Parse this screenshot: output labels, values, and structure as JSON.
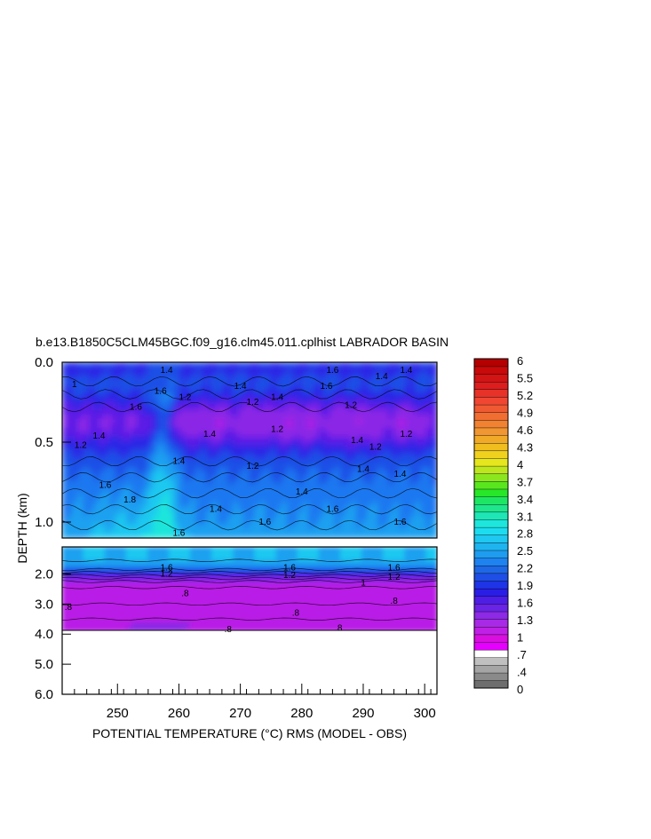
{
  "chart_data": {
    "type": "heatmap",
    "title": "b.e13.B1850C5CLM45BGC.f09_g16.clm45.011.cplhist LABRADOR BASIN",
    "xlabel": "POTENTIAL TEMPERATURE (°C) RMS (MODEL - OBS)",
    "ylabel": "DEPTH (km)",
    "xlim": [
      241,
      302
    ],
    "x_ticks": [
      "250",
      "260",
      "270",
      "280",
      "290",
      "300"
    ],
    "upper_panel": {
      "ylim": [
        0.0,
        1.1
      ],
      "y_ticks": [
        "0.0",
        "0.5",
        "1.0"
      ]
    },
    "lower_panel": {
      "ylim": [
        1.1,
        6.0
      ],
      "y_ticks": [
        "2.0",
        "3.0",
        "4.0",
        "5.0",
        "6.0"
      ]
    },
    "colorbar": {
      "labels": [
        "6",
        "5.5",
        "5.2",
        "4.9",
        "4.6",
        "4.3",
        "4",
        "3.7",
        "3.4",
        "3.1",
        "2.8",
        "2.5",
        "2.2",
        "1.9",
        "1.6",
        "1.3",
        "1",
        ".7",
        ".4",
        "0"
      ],
      "colors": [
        "#6e6e6e",
        "#8a8a8a",
        "#a5a5a5",
        "#c0c0c0",
        "#ffffff",
        "#e600ff",
        "#d90fe0",
        "#c020e6",
        "#a82ae6",
        "#8c2ae6",
        "#6a24e6",
        "#4e1ee6",
        "#2a1ee6",
        "#1e34e6",
        "#1e4ee6",
        "#1e68e6",
        "#1e82f0",
        "#1e9cf0",
        "#1eb4f0",
        "#1ec8f0",
        "#1edcf0",
        "#1ee6dc",
        "#1ee6b4",
        "#1ee68c",
        "#1ee664",
        "#28e628",
        "#5ae61e",
        "#8ce61e",
        "#bee61e",
        "#e6e61e",
        "#f0d21e",
        "#f0be1e",
        "#f0aa28",
        "#f09632",
        "#f08232",
        "#f06e32",
        "#f05a32",
        "#f04632",
        "#e63228",
        "#dc1e1e",
        "#d21414",
        "#c80a0a",
        "#b40000"
      ]
    },
    "grid": false,
    "contour_labels": [
      {
        "x": 243,
        "d": 0.14,
        "t": "1"
      },
      {
        "x": 253,
        "d": 0.28,
        "t": "1.6"
      },
      {
        "x": 257,
        "d": 0.18,
        "t": "1.6"
      },
      {
        "x": 258,
        "d": 0.05,
        "t": "1.4"
      },
      {
        "x": 261,
        "d": 0.22,
        "t": "1.2"
      },
      {
        "x": 265,
        "d": 0.45,
        "t": "1.4"
      },
      {
        "x": 270,
        "d": 0.15,
        "t": "1.4"
      },
      {
        "x": 272,
        "d": 0.25,
        "t": "1.2"
      },
      {
        "x": 276,
        "d": 0.42,
        "t": "1.2"
      },
      {
        "x": 276,
        "d": 0.22,
        "t": "1.4"
      },
      {
        "x": 285,
        "d": 0.05,
        "t": "1.6"
      },
      {
        "x": 284,
        "d": 0.15,
        "t": "1.6"
      },
      {
        "x": 288,
        "d": 0.27,
        "t": "1.2"
      },
      {
        "x": 289,
        "d": 0.49,
        "t": "1.4"
      },
      {
        "x": 293,
        "d": 0.09,
        "t": "1.4"
      },
      {
        "x": 297,
        "d": 0.05,
        "t": "1.4"
      },
      {
        "x": 297,
        "d": 0.45,
        "t": "1.2"
      },
      {
        "x": 244,
        "d": 0.52,
        "t": "1.2"
      },
      {
        "x": 247,
        "d": 0.46,
        "t": "1.4"
      },
      {
        "x": 248,
        "d": 0.77,
        "t": "1.6"
      },
      {
        "x": 252,
        "d": 0.86,
        "t": "1.8"
      },
      {
        "x": 260,
        "d": 0.62,
        "t": "1.4"
      },
      {
        "x": 260,
        "d": 1.07,
        "t": "1.6"
      },
      {
        "x": 266,
        "d": 0.92,
        "t": "1.4"
      },
      {
        "x": 272,
        "d": 0.65,
        "t": "1.2"
      },
      {
        "x": 274,
        "d": 1.0,
        "t": "1.6"
      },
      {
        "x": 280,
        "d": 0.81,
        "t": "1.4"
      },
      {
        "x": 285,
        "d": 0.92,
        "t": "1.6"
      },
      {
        "x": 290,
        "d": 0.67,
        "t": "1.4"
      },
      {
        "x": 292,
        "d": 0.53,
        "t": "1.2"
      },
      {
        "x": 296,
        "d": 0.7,
        "t": "1.4"
      },
      {
        "x": 296,
        "d": 1.0,
        "t": "1.6"
      },
      {
        "x": 258,
        "d": 1.8,
        "t": "1.6"
      },
      {
        "x": 258,
        "d": 2.0,
        "t": "1.2"
      },
      {
        "x": 278,
        "d": 1.8,
        "t": "1.6"
      },
      {
        "x": 278,
        "d": 2.05,
        "t": "1.2"
      },
      {
        "x": 295,
        "d": 1.8,
        "t": "1.6"
      },
      {
        "x": 295,
        "d": 2.1,
        "t": "1.2"
      },
      {
        "x": 290,
        "d": 2.3,
        "t": "1"
      },
      {
        "x": 242,
        "d": 3.1,
        "t": ".8"
      },
      {
        "x": 261,
        "d": 2.65,
        "t": ".8"
      },
      {
        "x": 279,
        "d": 3.3,
        "t": ".8"
      },
      {
        "x": 295,
        "d": 2.9,
        "t": ".8"
      },
      {
        "x": 268,
        "d": 3.85,
        "t": ".8"
      },
      {
        "x": 286,
        "d": 3.8,
        "t": ".8"
      }
    ]
  }
}
